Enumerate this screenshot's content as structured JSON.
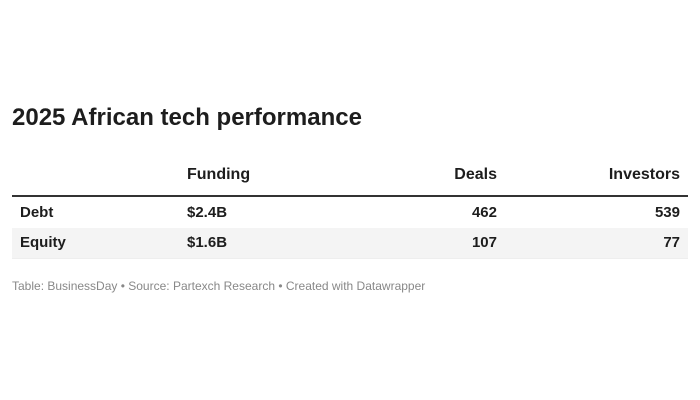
{
  "header": {
    "title": "2025 African tech performance"
  },
  "table": {
    "columns": [
      "Funding",
      "Deals",
      "Investors"
    ],
    "rows": [
      [
        "Debt",
        "$2.4B",
        462,
        539
      ],
      [
        "Equity",
        "$1.6B",
        107,
        77
      ]
    ]
  },
  "footer": {
    "text": "Table: BusinessDay • Source: Partexch Research • Created with Datawrapper"
  }
}
